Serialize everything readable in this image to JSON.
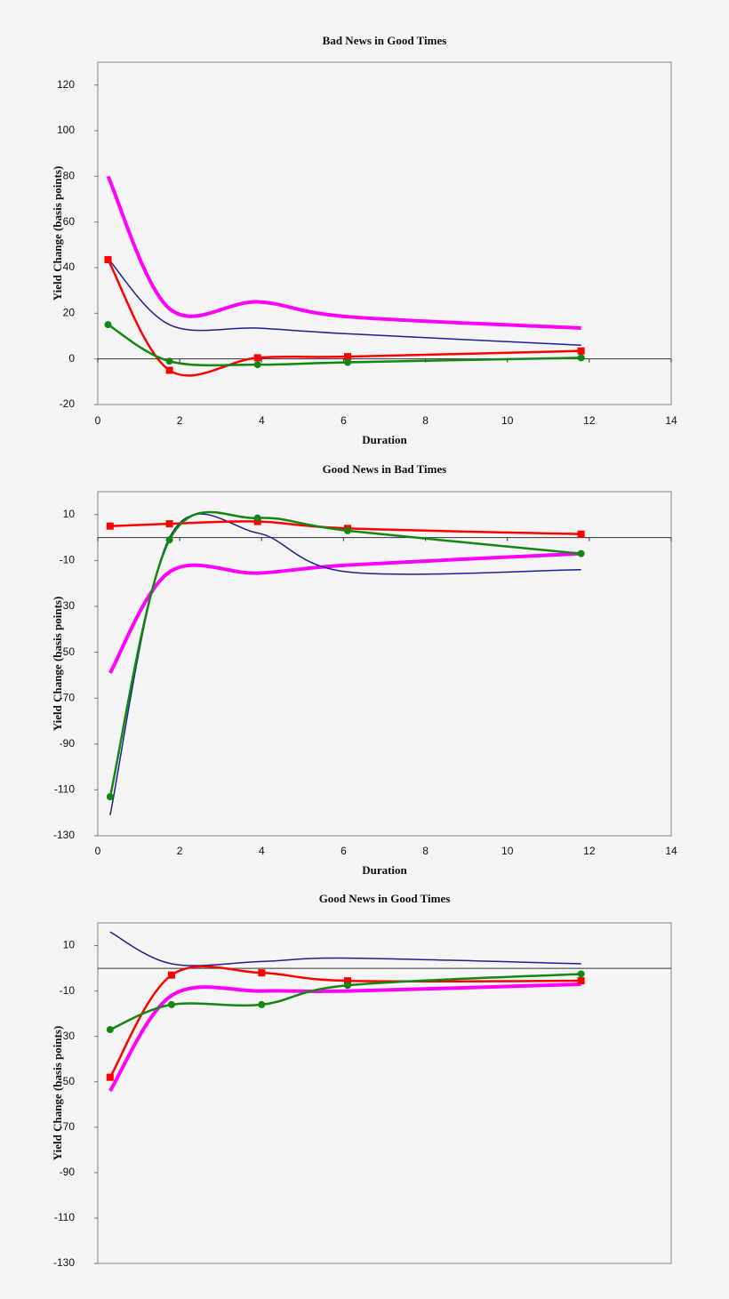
{
  "chart_data": [
    {
      "type": "line",
      "title": "Bad News in Good Times",
      "xlabel": "Duration",
      "ylabel": "Yield Change (basis points)",
      "x": [
        0.25,
        1.75,
        3.9,
        6.1,
        11.8
      ],
      "series": [
        {
          "color": "#ff00ff",
          "values": [
            80,
            22,
            25,
            18.5,
            13.5
          ]
        },
        {
          "color": "#1f1f8f",
          "values": [
            44,
            15,
            13.5,
            11,
            6
          ]
        },
        {
          "color": "#ff0000",
          "marker": "square",
          "values": [
            43.5,
            -5,
            0.5,
            1,
            3.5
          ]
        },
        {
          "color": "#118811",
          "marker": "circle",
          "values": [
            15,
            -1,
            -2.5,
            -1.5,
            0.5
          ]
        }
      ],
      "xlim": [
        0,
        14
      ],
      "xticks": [
        0,
        2,
        4,
        6,
        8,
        10,
        12,
        14
      ],
      "ylim": [
        -20,
        130
      ],
      "yticks": [
        -20,
        0,
        20,
        40,
        60,
        80,
        100,
        120
      ]
    },
    {
      "type": "line",
      "title": "Good News in Bad Times",
      "xlabel": "Duration",
      "ylabel": "Yield Change (basis points)",
      "x": [
        0.3,
        1.75,
        3.9,
        6.1,
        11.8
      ],
      "series": [
        {
          "color": "#ff00ff",
          "values": [
            -59,
            -15,
            -15.5,
            -12,
            -7
          ]
        },
        {
          "color": "#1f1f8f",
          "values": [
            -121,
            0,
            2,
            -15,
            -14
          ]
        },
        {
          "color": "#ff0000",
          "marker": "square",
          "values": [
            5,
            6,
            7,
            4,
            1.5
          ]
        },
        {
          "color": "#118811",
          "marker": "circle",
          "values": [
            -113,
            -1,
            8.5,
            3,
            -7
          ]
        }
      ],
      "xlim": [
        0,
        14
      ],
      "xticks": [
        0,
        2,
        4,
        6,
        8,
        10,
        12,
        14
      ],
      "ylim": [
        -130,
        20
      ],
      "yticks": [
        -130,
        -110,
        -90,
        -70,
        -50,
        -30,
        -10,
        10
      ]
    },
    {
      "type": "line",
      "title": "Good News in Good Times",
      "ylabel": "Yield Change (basis points)",
      "x": [
        0.3,
        1.8,
        4,
        6.1,
        11.8
      ],
      "series": [
        {
          "color": "#ff00ff",
          "values": [
            -54,
            -12,
            -10,
            -10,
            -7
          ]
        },
        {
          "color": "#1f1f8f",
          "values": [
            16,
            2,
            3,
            4.5,
            2
          ]
        },
        {
          "color": "#ff0000",
          "marker": "square",
          "values": [
            -48,
            -3,
            -2,
            -5.5,
            -5.5
          ]
        },
        {
          "color": "#118811",
          "marker": "circle",
          "values": [
            -27,
            -16,
            -16,
            -7.5,
            -2.5
          ]
        }
      ],
      "xlim": [
        0,
        14
      ],
      "ylim": [
        -130,
        20
      ],
      "yticks": [
        -130,
        -110,
        -90,
        -70,
        -50,
        -30,
        -10,
        10
      ]
    }
  ]
}
